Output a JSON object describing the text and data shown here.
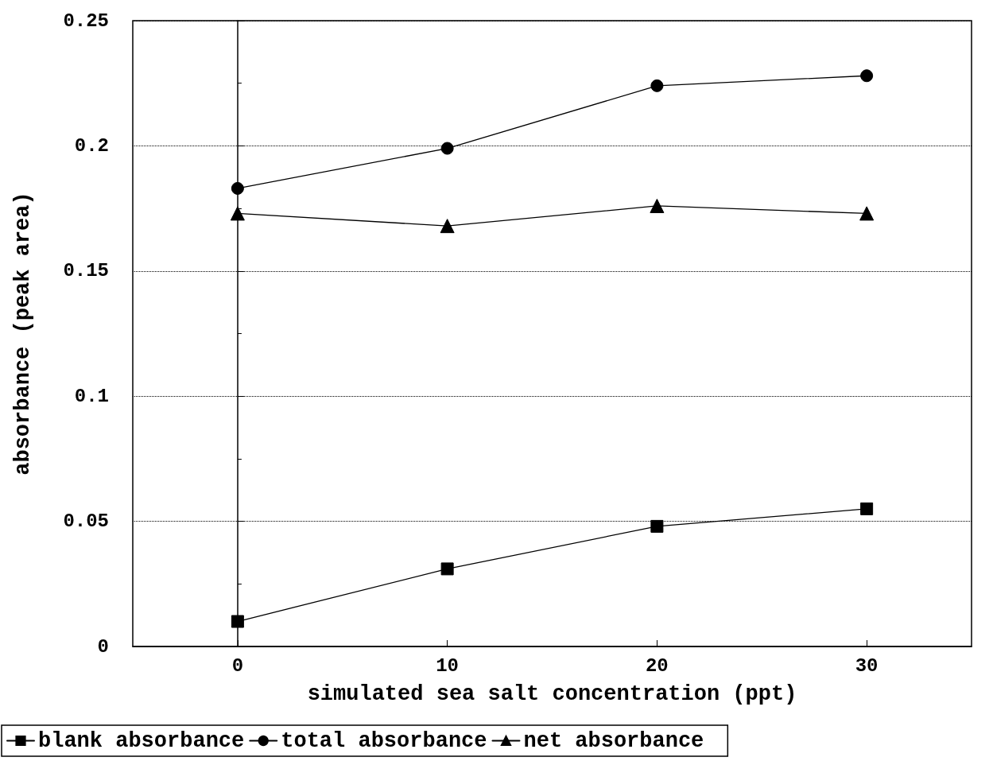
{
  "chart_data": {
    "type": "line",
    "xlabel": "simulated sea salt concentration (ppt)",
    "ylabel": "absorbance (peak area)",
    "x": [
      0,
      10,
      20,
      30
    ],
    "series": [
      {
        "name": "blank absorbance",
        "color": "#000000",
        "marker": "square",
        "values": [
          0.01,
          0.031,
          0.048,
          0.055
        ]
      },
      {
        "name": "total absorbance",
        "color": "#000000",
        "marker": "circle",
        "values": [
          0.183,
          0.199,
          0.224,
          0.228
        ]
      },
      {
        "name": "net absorbance",
        "color": "#000000",
        "marker": "triangle",
        "values": [
          0.173,
          0.168,
          0.176,
          0.173
        ]
      }
    ],
    "xlim": [
      -5,
      35
    ],
    "xticks": [
      0,
      10,
      20,
      30
    ],
    "ylim": [
      0,
      0.25
    ],
    "yticks": [
      0,
      0.05,
      0.1,
      0.15,
      0.2,
      0.25
    ],
    "grid": "y",
    "legend": "bottom",
    "line_style": "solid"
  }
}
